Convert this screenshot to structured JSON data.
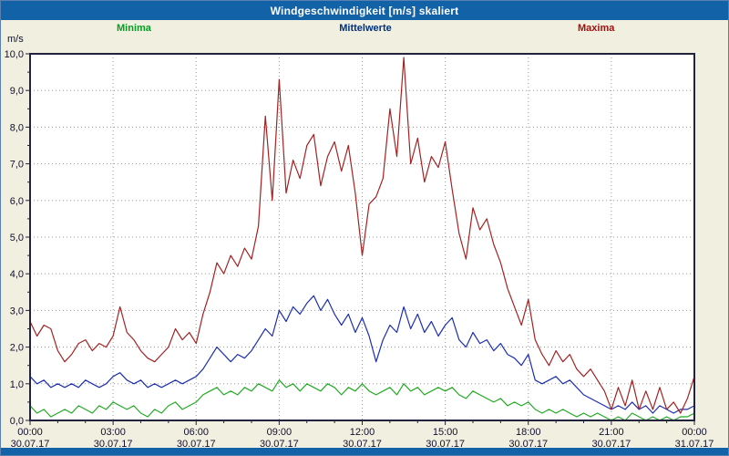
{
  "window": {
    "title": "Windgeschwindigkeit [m/s] skaliert"
  },
  "colors": {
    "title_bar": "#1162a6",
    "bottom_bar": "#1162a6",
    "background": "#f1efdf",
    "plot_background": "#ffffff",
    "plot_border": "#23233c",
    "grid": "#9a9a9a",
    "axis_text": "#10102e",
    "legend_minima": "#00a020",
    "legend_mittelwerte": "#003080",
    "legend_maxima": "#a01010"
  },
  "chart_data": {
    "type": "line",
    "title": "Windgeschwindigkeit [m/s] skaliert",
    "y_unit": "m/s",
    "ylim": [
      0,
      10
    ],
    "xlim_hours": [
      0,
      24
    ],
    "sample_interval_minutes": 15,
    "grid": "dotted",
    "legend_position": "top",
    "y_tick_labels": [
      "0,0",
      "1,0",
      "2,0",
      "3,0",
      "4,0",
      "5,0",
      "6,0",
      "7,0",
      "8,0",
      "9,0",
      "10,0"
    ],
    "x_tick_times": [
      "00:00",
      "03:00",
      "06:00",
      "09:00",
      "12:00",
      "15:00",
      "18:00",
      "21:00",
      "00:00"
    ],
    "x_tick_dates": [
      "30.07.17",
      "30.07.17",
      "30.07.17",
      "30.07.17",
      "30.07.17",
      "30.07.17",
      "30.07.17",
      "30.07.17",
      "31.07.17"
    ],
    "series": [
      {
        "name": "Minima",
        "color": "#22aa22",
        "values": [
          0.4,
          0.2,
          0.3,
          0.1,
          0.2,
          0.3,
          0.2,
          0.4,
          0.3,
          0.2,
          0.4,
          0.3,
          0.5,
          0.4,
          0.3,
          0.4,
          0.2,
          0.1,
          0.3,
          0.2,
          0.4,
          0.5,
          0.3,
          0.4,
          0.5,
          0.7,
          0.8,
          0.9,
          0.7,
          0.8,
          0.7,
          0.9,
          0.8,
          1.0,
          0.9,
          0.8,
          1.1,
          0.9,
          1.0,
          0.8,
          1.0,
          0.9,
          0.8,
          1.0,
          0.9,
          0.7,
          0.9,
          0.8,
          1.0,
          0.8,
          0.7,
          0.8,
          0.9,
          0.7,
          1.0,
          0.8,
          0.9,
          0.7,
          0.8,
          0.9,
          0.8,
          0.9,
          0.7,
          0.6,
          0.8,
          0.7,
          0.6,
          0.5,
          0.6,
          0.4,
          0.5,
          0.4,
          0.5,
          0.3,
          0.2,
          0.3,
          0.2,
          0.3,
          0.2,
          0.1,
          0.2,
          0.1,
          0.2,
          0.1,
          0.0,
          0.1,
          0.0,
          0.2,
          0.1,
          0.0,
          0.1,
          0.0,
          0.1,
          0.0,
          0.1,
          0.1,
          0.2
        ]
      },
      {
        "name": "Mittelwerte",
        "color": "#1c2fae",
        "values": [
          1.2,
          1.0,
          1.1,
          0.9,
          1.0,
          0.9,
          1.0,
          0.9,
          1.1,
          1.0,
          0.9,
          1.0,
          1.2,
          1.3,
          1.1,
          1.0,
          1.1,
          0.9,
          1.0,
          0.9,
          1.0,
          1.1,
          1.0,
          1.1,
          1.2,
          1.4,
          1.7,
          2.0,
          1.8,
          1.6,
          1.8,
          1.7,
          1.9,
          2.2,
          2.5,
          2.3,
          3.0,
          2.7,
          3.1,
          2.9,
          3.2,
          3.4,
          3.0,
          3.3,
          2.9,
          2.6,
          2.9,
          2.4,
          2.8,
          2.3,
          1.6,
          2.2,
          2.6,
          2.4,
          3.1,
          2.5,
          2.9,
          2.4,
          2.7,
          2.3,
          2.6,
          2.8,
          2.2,
          2.0,
          2.4,
          2.1,
          2.2,
          1.9,
          2.1,
          1.8,
          1.7,
          1.5,
          1.8,
          1.1,
          1.0,
          1.1,
          1.2,
          1.0,
          1.1,
          0.9,
          0.7,
          0.6,
          0.5,
          0.4,
          0.3,
          0.4,
          0.3,
          0.5,
          0.3,
          0.4,
          0.2,
          0.4,
          0.3,
          0.2,
          0.3,
          0.3,
          0.4
        ]
      },
      {
        "name": "Maxima",
        "color": "#a42222",
        "values": [
          2.7,
          2.3,
          2.6,
          2.5,
          1.9,
          1.6,
          1.8,
          2.1,
          2.2,
          1.9,
          2.1,
          2.0,
          2.3,
          3.1,
          2.4,
          2.2,
          1.9,
          1.7,
          1.6,
          1.8,
          2.0,
          2.5,
          2.2,
          2.4,
          2.1,
          2.9,
          3.5,
          4.3,
          4.0,
          4.5,
          4.2,
          4.7,
          4.4,
          5.3,
          8.3,
          6.0,
          9.3,
          6.2,
          7.1,
          6.6,
          7.5,
          7.8,
          6.4,
          7.2,
          7.6,
          6.8,
          7.5,
          6.2,
          4.5,
          5.9,
          6.1,
          6.6,
          8.5,
          7.2,
          9.9,
          7.0,
          7.7,
          6.5,
          7.2,
          6.9,
          7.6,
          6.3,
          5.1,
          4.4,
          5.8,
          5.2,
          5.5,
          4.8,
          4.3,
          3.6,
          3.1,
          2.6,
          3.3,
          2.2,
          1.8,
          1.5,
          1.9,
          1.6,
          1.8,
          1.4,
          1.2,
          1.4,
          1.1,
          0.8,
          0.3,
          0.9,
          0.4,
          1.1,
          0.3,
          0.8,
          0.3,
          0.9,
          0.3,
          0.5,
          0.2,
          0.6,
          1.2
        ]
      }
    ]
  }
}
